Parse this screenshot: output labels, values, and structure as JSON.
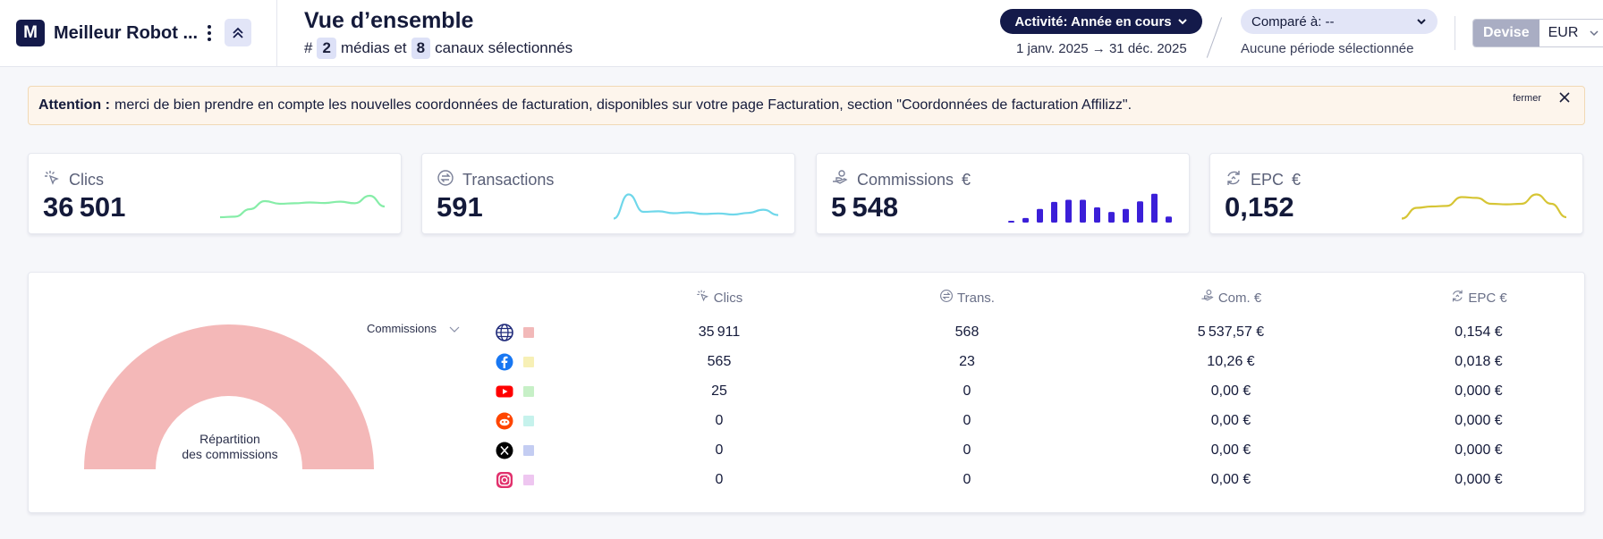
{
  "header": {
    "brand_initial": "M",
    "brand_name": "Meilleur Robot ...",
    "title": "Vue d’ensemble",
    "subtitle_prefix": "#",
    "media_count": "2",
    "media_label": "médias et",
    "channel_count": "8",
    "channel_label": "canaux sélectionnés",
    "activity_label": "Activité: Année en cours",
    "date_start": "1 janv. 2025",
    "date_end": "31 déc. 2025",
    "compare_label": "Comparé à: --",
    "compare_sub": "Aucune période sélectionnée",
    "currency_label": "Devise",
    "currency_value": "EUR"
  },
  "alert": {
    "strong": "Attention :",
    "text": "merci de bien prendre en compte les nouvelles coordonnées de facturation, disponibles sur votre page Facturation, section \"Coordonnées de facturation Affilizz\".",
    "close_label": "fermer"
  },
  "kpis": [
    {
      "label": "Clics",
      "unit": "",
      "value": "36 501",
      "color": "#86eda8",
      "spark": [
        0.1,
        0.12,
        0.4,
        0.7,
        0.6,
        0.62,
        0.65,
        0.63,
        0.68,
        0.62,
        0.9,
        0.5
      ],
      "icon": "cursor-click-icon"
    },
    {
      "label": "Transactions",
      "unit": "",
      "value": "591",
      "color": "#6fd7ea",
      "spark": [
        0.05,
        0.95,
        0.3,
        0.32,
        0.25,
        0.28,
        0.22,
        0.24,
        0.2,
        0.26,
        0.38,
        0.18
      ],
      "icon": "exchange-icon"
    },
    {
      "label": "Commissions",
      "unit": "€",
      "value": "5 548",
      "color": "#3b1fd8",
      "bars": [
        0.04,
        0.15,
        0.45,
        0.68,
        0.75,
        0.75,
        0.5,
        0.35,
        0.45,
        0.7,
        0.95,
        0.2
      ],
      "icon": "hand-coin-icon"
    },
    {
      "label": "EPC",
      "unit": "€",
      "value": "0,152",
      "color": "#d6c535",
      "spark": [
        0.05,
        0.45,
        0.5,
        0.52,
        0.85,
        0.82,
        0.6,
        0.58,
        0.6,
        0.95,
        0.6,
        0.1
      ],
      "icon": "cycle-icon"
    }
  ],
  "panel": {
    "metric_select": "Commissions",
    "donut_label_line1": "Répartition",
    "donut_label_line2": "des commissions",
    "donut_color": "#f4b8b8",
    "columns": [
      {
        "label": "Clics",
        "icon": "cursor-click-icon"
      },
      {
        "label": "Trans.",
        "icon": "exchange-icon"
      },
      {
        "label": "Com. €",
        "icon": "hand-coin-icon"
      },
      {
        "label": "EPC €",
        "icon": "cycle-icon"
      }
    ],
    "rows": [
      {
        "channel": "web",
        "icon": "globe-icon",
        "swatch": "#f2b9b9",
        "clics": "35 911",
        "trans": "568",
        "com": "5 537,57 €",
        "epc": "0,154 €"
      },
      {
        "channel": "facebook",
        "icon": "facebook-icon",
        "swatch": "#f7f0b6",
        "clics": "565",
        "trans": "23",
        "com": "10,26 €",
        "epc": "0,018 €"
      },
      {
        "channel": "youtube",
        "icon": "youtube-icon",
        "swatch": "#c7f0c7",
        "clics": "25",
        "trans": "0",
        "com": "0,00 €",
        "epc": "0,000 €"
      },
      {
        "channel": "reddit",
        "icon": "reddit-icon",
        "swatch": "#c6f2ec",
        "clics": "0",
        "trans": "0",
        "com": "0,00 €",
        "epc": "0,000 €"
      },
      {
        "channel": "x",
        "icon": "x-icon",
        "swatch": "#c4cdf2",
        "clics": "0",
        "trans": "0",
        "com": "0,00 €",
        "epc": "0,000 €"
      },
      {
        "channel": "instagram",
        "icon": "instagram-icon",
        "swatch": "#eec6f0",
        "clics": "0",
        "trans": "0",
        "com": "0,00 €",
        "epc": "0,000 €"
      }
    ]
  }
}
